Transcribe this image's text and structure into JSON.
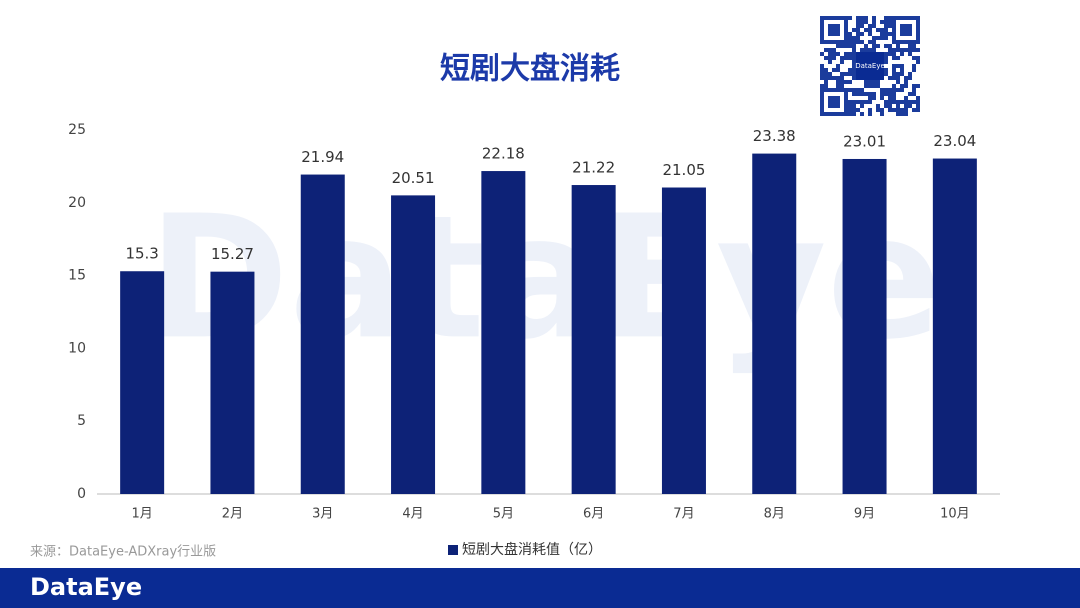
{
  "chart_data": {
    "type": "bar",
    "title": "短剧大盘消耗",
    "categories": [
      "1月",
      "2月",
      "3月",
      "4月",
      "5月",
      "6月",
      "7月",
      "8月",
      "9月",
      "10月"
    ],
    "series": [
      {
        "name": "短剧大盘消耗值（亿）",
        "color": "#0d2277",
        "values": [
          15.3,
          15.27,
          21.94,
          20.51,
          22.18,
          21.22,
          21.05,
          23.38,
          23.01,
          23.04
        ]
      }
    ],
    "ylim": [
      0,
      25
    ],
    "yticks": [
      0,
      5,
      10,
      15,
      20,
      25
    ],
    "grid": false,
    "legend": "bottom"
  },
  "source": "来源：DataEye-ADXray行业版",
  "brand": "DataEye"
}
